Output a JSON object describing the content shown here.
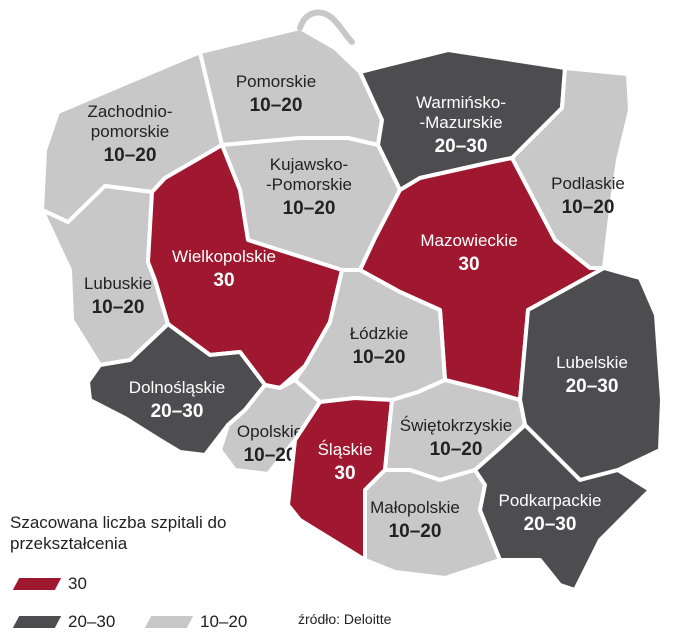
{
  "colors": {
    "high": "#a0182f",
    "mid": "#4d4d50",
    "low": "#c8c8c9"
  },
  "regions": [
    {
      "id": "zachodniopomorskie",
      "name_lines": [
        "Zachodnio-",
        "pomorskie"
      ],
      "value": "10–20",
      "level": "low"
    },
    {
      "id": "pomorskie",
      "name_lines": [
        "Pomorskie"
      ],
      "value": "10–20",
      "level": "low"
    },
    {
      "id": "warminsko-mazurskie",
      "name_lines": [
        "Warmińsko-",
        "-Mazurskie"
      ],
      "value": "20–30",
      "level": "mid"
    },
    {
      "id": "podlaskie",
      "name_lines": [
        "Podlaskie"
      ],
      "value": "10–20",
      "level": "low"
    },
    {
      "id": "kujawsko-pomorskie",
      "name_lines": [
        "Kujawsko-",
        "-Pomorskie"
      ],
      "value": "10–20",
      "level": "low"
    },
    {
      "id": "lubuskie",
      "name_lines": [
        "Lubuskie"
      ],
      "value": "10–20",
      "level": "low"
    },
    {
      "id": "wielkopolskie",
      "name_lines": [
        "Wielkopolskie"
      ],
      "value": "30",
      "level": "high"
    },
    {
      "id": "mazowieckie",
      "name_lines": [
        "Mazowieckie"
      ],
      "value": "30",
      "level": "high"
    },
    {
      "id": "lodzkie",
      "name_lines": [
        "Łódzkie"
      ],
      "value": "10–20",
      "level": "low"
    },
    {
      "id": "lubelskie",
      "name_lines": [
        "Lubelskie"
      ],
      "value": "20–30",
      "level": "mid"
    },
    {
      "id": "dolnoslaskie",
      "name_lines": [
        "Dolnośląskie"
      ],
      "value": "20–30",
      "level": "mid"
    },
    {
      "id": "opolskie",
      "name_lines": [
        "Opolskie"
      ],
      "value": "10–20",
      "level": "low"
    },
    {
      "id": "slaskie",
      "name_lines": [
        "Śląskie"
      ],
      "value": "30",
      "level": "high"
    },
    {
      "id": "swietokrzyskie",
      "name_lines": [
        "Świętokrzyskie"
      ],
      "value": "10–20",
      "level": "low"
    },
    {
      "id": "malopolskie",
      "name_lines": [
        "Małopolskie"
      ],
      "value": "10–20",
      "level": "low"
    },
    {
      "id": "podkarpackie",
      "name_lines": [
        "Podkarpackie"
      ],
      "value": "20–30",
      "level": "mid"
    }
  ],
  "legend": {
    "title": "Szacowana liczba szpitali do przekształcenia",
    "items": [
      {
        "label": "30",
        "level": "high"
      },
      {
        "label": "20–30",
        "level": "mid"
      },
      {
        "label": "10–20",
        "level": "low"
      }
    ]
  },
  "source": "źródło: Deloitte"
}
